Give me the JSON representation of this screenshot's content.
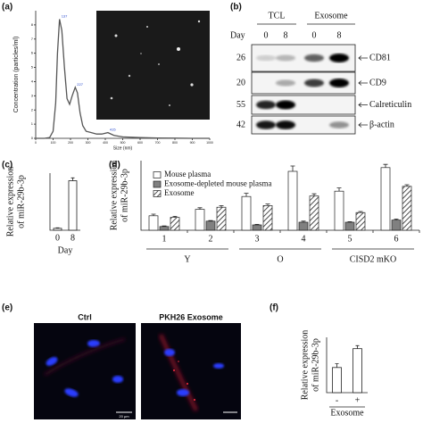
{
  "panel_labels": [
    "(a)",
    "(b)",
    "(c)",
    "(d)",
    "(e)",
    "(f)"
  ],
  "chart_data": [
    {
      "type": "line",
      "ylabel": "Concentration (particles/ml)",
      "xlabel": "Size (nm)",
      "x": [
        0,
        50,
        80,
        100,
        115,
        125,
        137,
        150,
        165,
        180,
        195,
        210,
        227,
        240,
        255,
        270,
        290,
        320,
        350,
        380,
        415,
        450,
        500,
        600,
        700,
        800,
        900,
        1000
      ],
      "y": [
        0,
        0,
        0.05,
        0.5,
        2.5,
        6,
        8.4,
        7.6,
        5,
        2.8,
        2.4,
        3,
        3.6,
        3.2,
        1.8,
        0.9,
        0.5,
        0.4,
        0.3,
        0.3,
        0.4,
        0.2,
        0.1,
        0.05,
        0.02,
        0.01,
        0,
        0
      ],
      "peaks": [
        137,
        227,
        415
      ],
      "color": "#555555",
      "xlim": [
        0,
        1000
      ],
      "xticks": [
        0,
        100,
        200,
        300,
        400,
        500,
        600,
        700,
        800,
        900,
        1000
      ],
      "ylim": [
        0,
        9
      ],
      "yticks": [
        0,
        1,
        2,
        3,
        4,
        5,
        6,
        7,
        8
      ]
    },
    {
      "type": "bar",
      "ylabel": [
        "Relative expression",
        "of miR-29b-3p"
      ],
      "xlabel": "Day",
      "categories": [
        "0",
        "8"
      ],
      "values": [
        1,
        26
      ],
      "errors": [
        0.3,
        1.5
      ],
      "color": "#ffffff",
      "ylim": [
        0,
        30
      ]
    },
    {
      "type": "grouped-bar",
      "ylabel": [
        "Relative expression",
        "of miR-29b-3p"
      ],
      "categories": [
        "1",
        "2",
        "3",
        "4",
        "5",
        "6"
      ],
      "groups": [
        "Y",
        "O",
        "CISD2 mKO"
      ],
      "series": [
        {
          "name": "Mouse plasma",
          "color": "#ffffff",
          "values": [
            0.27,
            0.39,
            0.63,
            1.1,
            0.73,
            1.17
          ],
          "errors": [
            0.03,
            0.03,
            0.06,
            0.1,
            0.06,
            0.06
          ]
        },
        {
          "name": "Exosome-depleted mouse plasma",
          "color": "#808080",
          "values": [
            0.07,
            0.17,
            0.1,
            0.15,
            0.15,
            0.19
          ],
          "errors": [
            0.01,
            0.01,
            0.01,
            0.02,
            0.01,
            0.02
          ]
        },
        {
          "name": "Exosome",
          "color": "#ffffff",
          "hatch": true,
          "values": [
            0.24,
            0.43,
            0.46,
            0.64,
            0.33,
            0.82
          ],
          "errors": [
            0.02,
            0.03,
            0.03,
            0.04,
            0.02,
            0.03
          ]
        }
      ],
      "ylim": [
        0,
        1.3
      ],
      "legend": "top-left"
    },
    {
      "type": "bar",
      "ylabel": [
        "Relative expression",
        "of miR-29b-3p"
      ],
      "xlabel": "Exosome",
      "categories": [
        "-",
        "+"
      ],
      "values": [
        1.0,
        1.75
      ],
      "errors": [
        0.15,
        0.12
      ],
      "color": "#ffffff",
      "ylim": [
        0,
        2.2
      ]
    }
  ],
  "blot": {
    "header_groups": [
      "TCL",
      "Exosome"
    ],
    "day_label": "Day",
    "days": [
      "0",
      "8",
      "0",
      "8"
    ],
    "rows": [
      {
        "mw": "26",
        "label": "CD81"
      },
      {
        "mw": "20",
        "label": "CD9"
      },
      {
        "mw": "55",
        "label": "Calreticulin"
      },
      {
        "mw": "42",
        "label": "β-actin"
      }
    ]
  },
  "microscopy": {
    "titles": [
      "Ctrl",
      "PKH26 Exosome"
    ],
    "scale_bar": "20 μm"
  }
}
